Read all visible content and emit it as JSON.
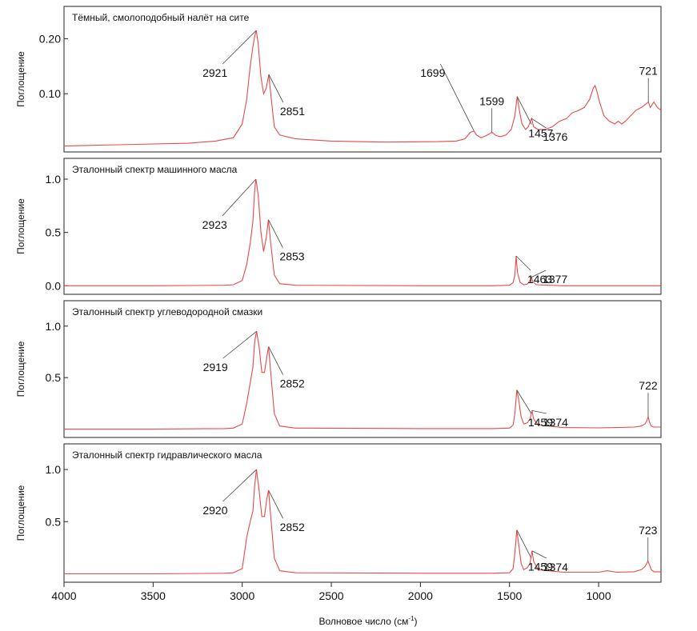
{
  "chart_data": {
    "type": "line",
    "x_axis": {
      "label": "Волновое число (см",
      "label_sup": "-1",
      "label_close": ")",
      "range": [
        4000,
        650
      ],
      "ticks": [
        "4000",
        "3500",
        "3000",
        "2500",
        "2000",
        "1500",
        "1000"
      ],
      "tick_values": [
        4000,
        3500,
        3000,
        2500,
        2000,
        1500,
        1000
      ]
    },
    "color": "#e64a4a",
    "panels": [
      {
        "title": "Тёмный, смолоподобный налёт на сите",
        "ylabel": "Поглощение",
        "ylim": [
          0,
          0.25
        ],
        "yticks": [
          "0.20",
          "0.10"
        ],
        "ytick_values": [
          0.2,
          0.1
        ],
        "x": [
          4000,
          3600,
          3300,
          3150,
          3050,
          3000,
          2975,
          2955,
          2940,
          2930,
          2921,
          2910,
          2895,
          2880,
          2865,
          2851,
          2840,
          2820,
          2790,
          2700,
          2500,
          2200,
          1900,
          1800,
          1750,
          1720,
          1699,
          1685,
          1660,
          1630,
          1599,
          1575,
          1550,
          1520,
          1490,
          1470,
          1457,
          1445,
          1430,
          1410,
          1395,
          1376,
          1365,
          1340,
          1300,
          1260,
          1220,
          1180,
          1150,
          1110,
          1080,
          1050,
          1030,
          1020,
          1010,
          995,
          970,
          940,
          910,
          890,
          870,
          850,
          820,
          790,
          760,
          740,
          721,
          710,
          700,
          690,
          680,
          670,
          650
        ],
        "y": [
          0.005,
          0.008,
          0.01,
          0.014,
          0.02,
          0.045,
          0.09,
          0.15,
          0.185,
          0.205,
          0.215,
          0.19,
          0.13,
          0.1,
          0.11,
          0.135,
          0.1,
          0.04,
          0.025,
          0.018,
          0.014,
          0.012,
          0.013,
          0.014,
          0.018,
          0.03,
          0.032,
          0.025,
          0.02,
          0.024,
          0.03,
          0.024,
          0.022,
          0.025,
          0.035,
          0.06,
          0.095,
          0.07,
          0.045,
          0.035,
          0.04,
          0.055,
          0.04,
          0.035,
          0.035,
          0.04,
          0.05,
          0.055,
          0.065,
          0.07,
          0.075,
          0.09,
          0.11,
          0.115,
          0.105,
          0.085,
          0.06,
          0.05,
          0.045,
          0.05,
          0.045,
          0.05,
          0.06,
          0.07,
          0.075,
          0.08,
          0.085,
          0.075,
          0.08,
          0.085,
          0.08,
          0.075,
          0.07
        ],
        "annotations": [
          {
            "label": "2921",
            "x": 2921,
            "y": 0.215,
            "side": "left"
          },
          {
            "label": "2851",
            "x": 2851,
            "y": 0.135,
            "side": "right"
          },
          {
            "label": "1699",
            "x": 1699,
            "y": 0.032,
            "side": "left"
          },
          {
            "label": "1599",
            "x": 1599,
            "y": 0.03,
            "side": "above"
          },
          {
            "label": "1457",
            "x": 1457,
            "y": 0.095,
            "side": "right"
          },
          {
            "label": "1376",
            "x": 1376,
            "y": 0.055,
            "side": "right"
          },
          {
            "label": "721",
            "x": 721,
            "y": 0.085,
            "side": "above"
          }
        ]
      },
      {
        "title": "Эталонный спектр машинного масла",
        "ylabel": "Поглощение",
        "ylim": [
          -0.05,
          1.15
        ],
        "yticks": [
          "1.0",
          "0.5",
          "0.0"
        ],
        "ytick_values": [
          1.0,
          0.5,
          0.0
        ],
        "x": [
          4000,
          3500,
          3100,
          3050,
          3000,
          2975,
          2955,
          2940,
          2930,
          2923,
          2910,
          2895,
          2880,
          2865,
          2853,
          2840,
          2820,
          2790,
          2700,
          2000,
          1600,
          1500,
          1480,
          1470,
          1463,
          1455,
          1440,
          1420,
          1400,
          1385,
          1377,
          1370,
          1350,
          1200,
          900,
          650
        ],
        "y": [
          0.0,
          0.0,
          0.005,
          0.01,
          0.05,
          0.2,
          0.4,
          0.6,
          0.9,
          1.0,
          0.85,
          0.5,
          0.32,
          0.45,
          0.62,
          0.4,
          0.1,
          0.02,
          0.005,
          0.0,
          0.0,
          0.005,
          0.03,
          0.1,
          0.28,
          0.12,
          0.03,
          0.01,
          0.015,
          0.05,
          0.08,
          0.04,
          0.01,
          0.0,
          0.0,
          0.0
        ],
        "annotations": [
          {
            "label": "2923",
            "x": 2923,
            "y": 1.0,
            "side": "left"
          },
          {
            "label": "2853",
            "x": 2853,
            "y": 0.62,
            "side": "right"
          },
          {
            "label": "1463",
            "x": 1463,
            "y": 0.28,
            "side": "right"
          },
          {
            "label": "1377",
            "x": 1377,
            "y": 0.08,
            "side": "right"
          }
        ]
      },
      {
        "title": "Эталонный спектр углеводородной смазки",
        "ylabel": "Поглощение",
        "ylim": [
          -0.05,
          1.2
        ],
        "yticks": [
          "1.0",
          "0.5"
        ],
        "ytick_values": [
          1.0,
          0.5
        ],
        "x": [
          4000,
          3500,
          3100,
          3050,
          3000,
          2975,
          2955,
          2940,
          2930,
          2919,
          2905,
          2890,
          2875,
          2862,
          2852,
          2840,
          2820,
          2790,
          2700,
          2000,
          1600,
          1500,
          1480,
          1470,
          1459,
          1450,
          1435,
          1420,
          1400,
          1385,
          1374,
          1365,
          1340,
          1200,
          1000,
          900,
          800,
          760,
          740,
          730,
          722,
          715,
          705,
          690,
          650
        ],
        "y": [
          0.0,
          0.0,
          0.005,
          0.01,
          0.05,
          0.25,
          0.45,
          0.6,
          0.85,
          0.95,
          0.8,
          0.55,
          0.55,
          0.7,
          0.8,
          0.55,
          0.15,
          0.03,
          0.01,
          0.005,
          0.005,
          0.01,
          0.04,
          0.15,
          0.38,
          0.3,
          0.12,
          0.05,
          0.06,
          0.1,
          0.18,
          0.1,
          0.04,
          0.015,
          0.012,
          0.015,
          0.02,
          0.03,
          0.05,
          0.08,
          0.12,
          0.07,
          0.03,
          0.02,
          0.02
        ],
        "annotations": [
          {
            "label": "2919",
            "x": 2919,
            "y": 0.95,
            "side": "left"
          },
          {
            "label": "2852",
            "x": 2852,
            "y": 0.8,
            "side": "right"
          },
          {
            "label": "1459",
            "x": 1459,
            "y": 0.38,
            "side": "right"
          },
          {
            "label": "1374",
            "x": 1374,
            "y": 0.18,
            "side": "right"
          },
          {
            "label": "722",
            "x": 722,
            "y": 0.12,
            "side": "above"
          }
        ]
      },
      {
        "title": "Эталонный спектр гидравлического масла",
        "ylabel": "Поглощение",
        "ylim": [
          -0.05,
          1.2
        ],
        "yticks": [
          "1.0",
          "0.5"
        ],
        "ytick_values": [
          1.0,
          0.5
        ],
        "x": [
          4000,
          3500,
          3100,
          3050,
          3000,
          2975,
          2955,
          2940,
          2930,
          2920,
          2905,
          2890,
          2875,
          2862,
          2852,
          2840,
          2820,
          2790,
          2700,
          2000,
          1600,
          1500,
          1480,
          1470,
          1459,
          1450,
          1435,
          1420,
          1400,
          1385,
          1374,
          1365,
          1340,
          1200,
          1000,
          950,
          900,
          800,
          760,
          740,
          730,
          723,
          715,
          705,
          690,
          650
        ],
        "y": [
          0.0,
          0.0,
          0.005,
          0.01,
          0.05,
          0.35,
          0.5,
          0.6,
          0.85,
          1.0,
          0.8,
          0.55,
          0.55,
          0.72,
          0.8,
          0.55,
          0.15,
          0.03,
          0.01,
          0.005,
          0.005,
          0.01,
          0.05,
          0.2,
          0.42,
          0.3,
          0.1,
          0.04,
          0.06,
          0.1,
          0.22,
          0.12,
          0.04,
          0.015,
          0.015,
          0.03,
          0.015,
          0.02,
          0.04,
          0.07,
          0.1,
          0.12,
          0.09,
          0.04,
          0.02,
          0.02
        ],
        "annotations": [
          {
            "label": "2920",
            "x": 2920,
            "y": 1.0,
            "side": "left"
          },
          {
            "label": "2852",
            "x": 2852,
            "y": 0.8,
            "side": "right"
          },
          {
            "label": "1459",
            "x": 1459,
            "y": 0.42,
            "side": "right"
          },
          {
            "label": "1374",
            "x": 1374,
            "y": 0.22,
            "side": "right"
          },
          {
            "label": "723",
            "x": 723,
            "y": 0.12,
            "side": "above"
          }
        ]
      }
    ]
  }
}
